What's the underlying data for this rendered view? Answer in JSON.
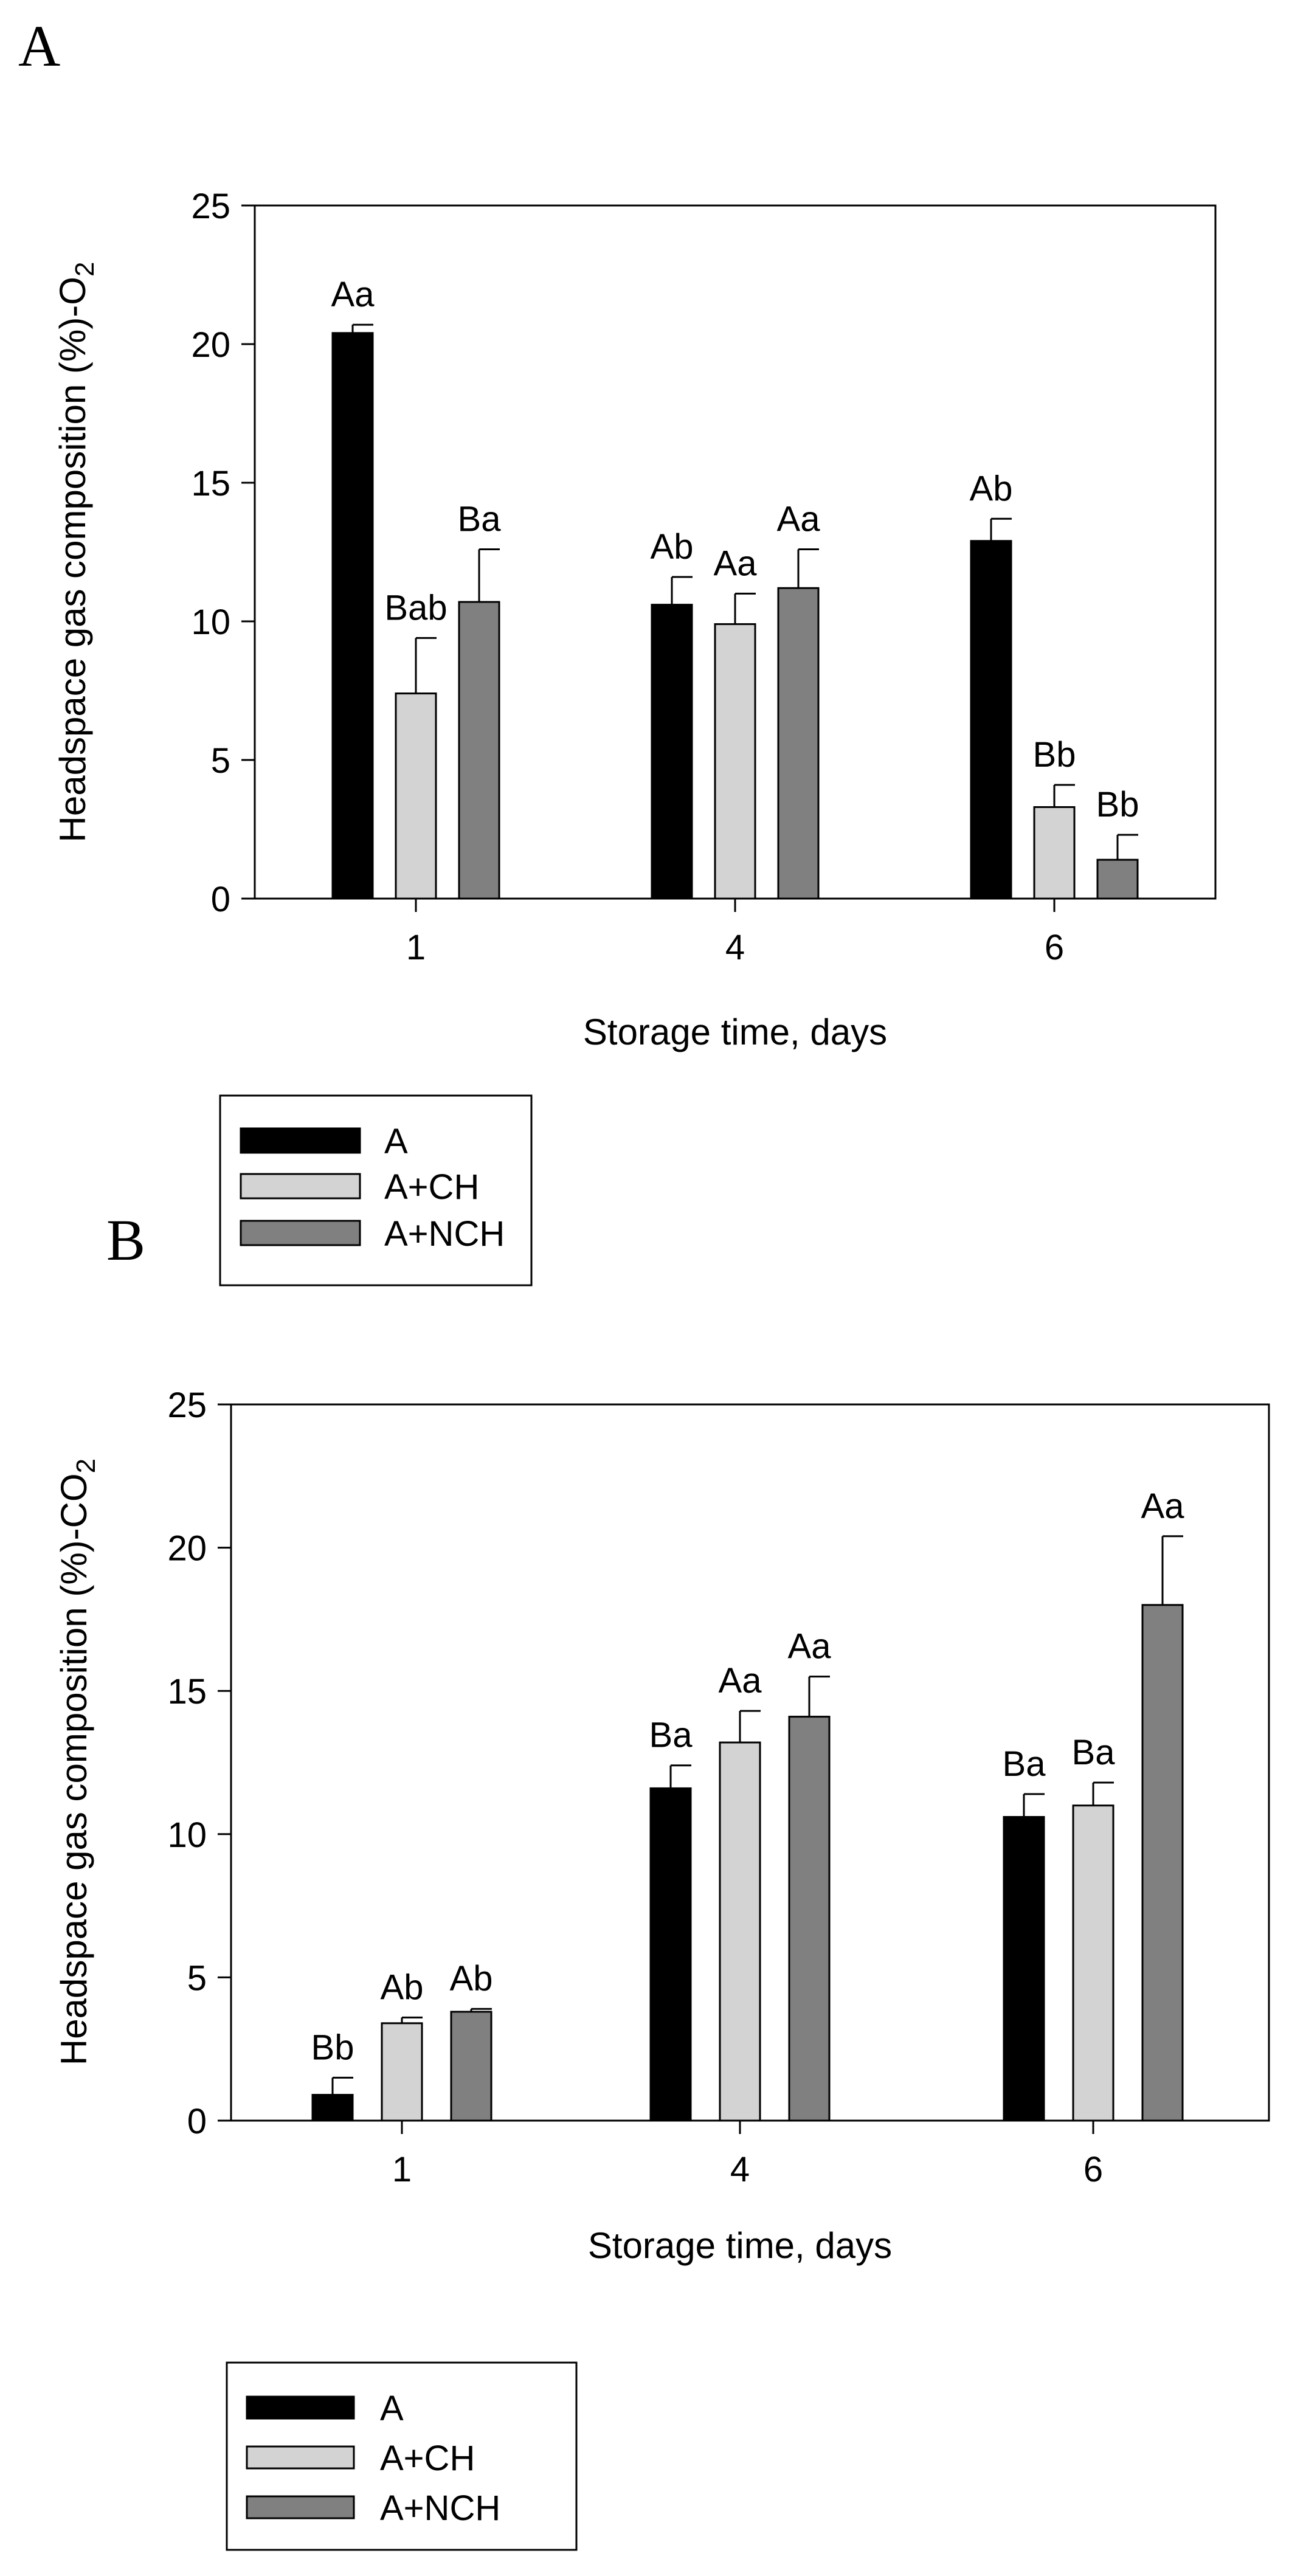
{
  "chart_data": [
    {
      "type": "bar",
      "panel_label": "A",
      "title": "",
      "xlabel": "Storage time, days",
      "ylabel_main": "Headspace gas composition (%)-O",
      "ylabel_sub": "2",
      "categories": [
        "1",
        "4",
        "6"
      ],
      "ylim": [
        0,
        25
      ],
      "yticks": [
        "0",
        "5",
        "10",
        "15",
        "20",
        "25"
      ],
      "series": [
        {
          "name": "A",
          "color": "#000000",
          "values": [
            20.4,
            10.6,
            12.9
          ],
          "errors": [
            0.3,
            1.0,
            0.8
          ],
          "labels": [
            "Aa",
            "Ab",
            "Ab"
          ]
        },
        {
          "name": "A+CH",
          "color": "#d3d3d3",
          "values": [
            7.4,
            9.9,
            3.3
          ],
          "errors": [
            2.0,
            1.1,
            0.8
          ],
          "labels": [
            "Bab",
            "Aa",
            "Bb"
          ]
        },
        {
          "name": "A+NCH",
          "color": "#808080",
          "values": [
            10.7,
            11.2,
            1.4
          ],
          "errors": [
            1.9,
            1.4,
            0.9
          ],
          "labels": [
            "Ba",
            "Aa",
            "Bb"
          ]
        }
      ],
      "legend": {
        "entries": [
          "A",
          "A+CH",
          "A+NCH"
        ],
        "position": "below-left"
      }
    },
    {
      "type": "bar",
      "panel_label": "B",
      "title": "",
      "xlabel": "Storage time, days",
      "ylabel_main": "Headspace gas composition (%)-CO",
      "ylabel_sub": "2",
      "categories": [
        "1",
        "4",
        "6"
      ],
      "ylim": [
        0,
        25
      ],
      "yticks": [
        "0",
        "5",
        "10",
        "15",
        "20",
        "25"
      ],
      "series": [
        {
          "name": "A",
          "color": "#000000",
          "values": [
            0.9,
            11.6,
            10.6
          ],
          "errors": [
            0.6,
            0.8,
            0.8
          ],
          "labels": [
            "Bb",
            "Ba",
            "Ba"
          ]
        },
        {
          "name": "A+CH",
          "color": "#d3d3d3",
          "values": [
            3.4,
            13.2,
            11.0
          ],
          "errors": [
            0.2,
            1.1,
            0.8
          ],
          "labels": [
            "Ab",
            "Aa",
            "Ba"
          ]
        },
        {
          "name": "A+NCH",
          "color": "#808080",
          "values": [
            3.8,
            14.1,
            18.0
          ],
          "errors": [
            0.1,
            1.4,
            2.4
          ],
          "labels": [
            "Ab",
            "Aa",
            "Aa"
          ]
        }
      ],
      "legend": {
        "entries": [
          "A",
          "A+CH",
          "A+NCH"
        ],
        "position": "below-left"
      }
    }
  ]
}
